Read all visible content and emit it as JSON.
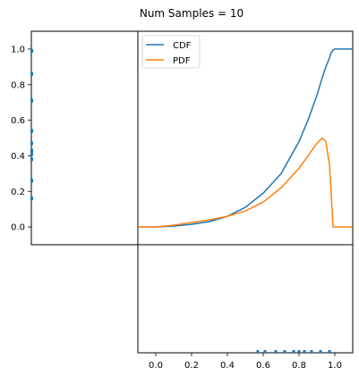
{
  "chart_data": {
    "type": "line",
    "title": "Num Samples = 10",
    "xlim": [
      -0.1,
      1.1
    ],
    "ylim": [
      -0.1,
      1.1
    ],
    "x_ticks": [
      0.0,
      0.2,
      0.4,
      0.6,
      0.8,
      1.0
    ],
    "x_tick_labels": [
      "0.0",
      "0.2",
      "0.4",
      "0.6",
      "0.8",
      "1.0"
    ],
    "y_ticks": [
      0.0,
      0.2,
      0.4,
      0.6,
      0.8,
      1.0
    ],
    "y_tick_labels": [
      "0.0",
      "0.2",
      "0.4",
      "0.6",
      "0.8",
      "1.0"
    ],
    "grid": false,
    "legend_position": "top-left",
    "x": [
      -0.1,
      0.0,
      0.1,
      0.2,
      0.3,
      0.4,
      0.5,
      0.6,
      0.7,
      0.8,
      0.85,
      0.9,
      0.93,
      0.95,
      0.97,
      0.98,
      0.99,
      1.0,
      1.02,
      1.1
    ],
    "series": [
      {
        "name": "CDF",
        "color": "#1f77b4",
        "values": [
          0.0,
          0.0,
          0.005,
          0.015,
          0.03,
          0.06,
          0.11,
          0.19,
          0.3,
          0.48,
          0.6,
          0.74,
          0.84,
          0.9,
          0.95,
          0.98,
          0.995,
          1.0,
          1.0,
          1.0
        ]
      },
      {
        "name": "PDF",
        "color": "#ff7f0e",
        "values": [
          0.0,
          0.0,
          0.01,
          0.025,
          0.04,
          0.06,
          0.09,
          0.14,
          0.22,
          0.33,
          0.4,
          0.47,
          0.5,
          0.48,
          0.35,
          0.18,
          0.0,
          0.0,
          0.0,
          0.0
        ]
      }
    ],
    "marginal_y_samples": {
      "color": "#1f77b4",
      "values": [
        0.99,
        0.86,
        0.71,
        0.54,
        0.47,
        0.43,
        0.41,
        0.38,
        0.26,
        0.16
      ]
    },
    "marginal_x_samples": {
      "color": "#1f77b4",
      "values": [
        0.57,
        0.61,
        0.67,
        0.72,
        0.77,
        0.8,
        0.83,
        0.87,
        0.92,
        0.97
      ]
    }
  }
}
